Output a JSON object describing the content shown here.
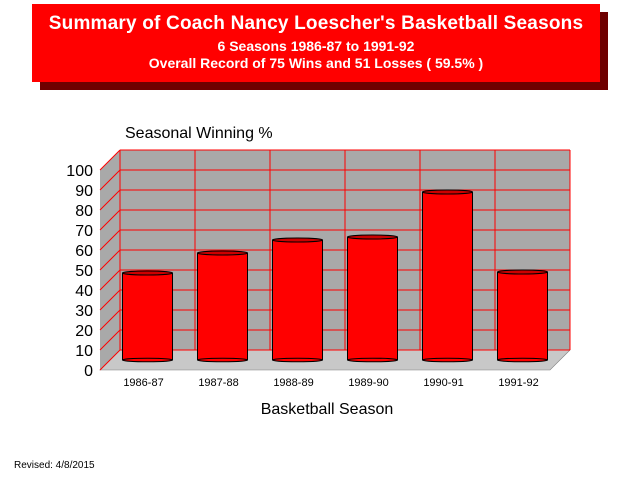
{
  "banner": {
    "title": "Summary of Coach Nancy Loescher's Basketball Seasons",
    "subtitle": "6 Seasons   1986-87 to 1991-92",
    "record": "Overall Record of 75 Wins and 51 Losses ( 59.5% )"
  },
  "footer": {
    "revised": "Revised: 4/8/2015"
  },
  "colors": {
    "banner": "#ff0000",
    "banner_shadow": "#6e0000",
    "plot_wall": "#a9a9a9",
    "grid": "#ff0000",
    "bar": "#ff0000"
  },
  "chart_data": {
    "type": "bar",
    "title": "Seasonal Winning %",
    "xlabel": "Basketball Season",
    "ylabel": "",
    "categories": [
      "1986-87",
      "1987-88",
      "1988-89",
      "1989-90",
      "1990-91",
      "1991-92"
    ],
    "values": [
      53,
      63,
      69.5,
      71,
      93.5,
      53.5
    ],
    "ylim": [
      0,
      100
    ],
    "yticks": [
      0,
      10,
      20,
      30,
      40,
      50,
      60,
      70,
      80,
      90,
      100
    ],
    "grid": true,
    "legend": "none"
  }
}
